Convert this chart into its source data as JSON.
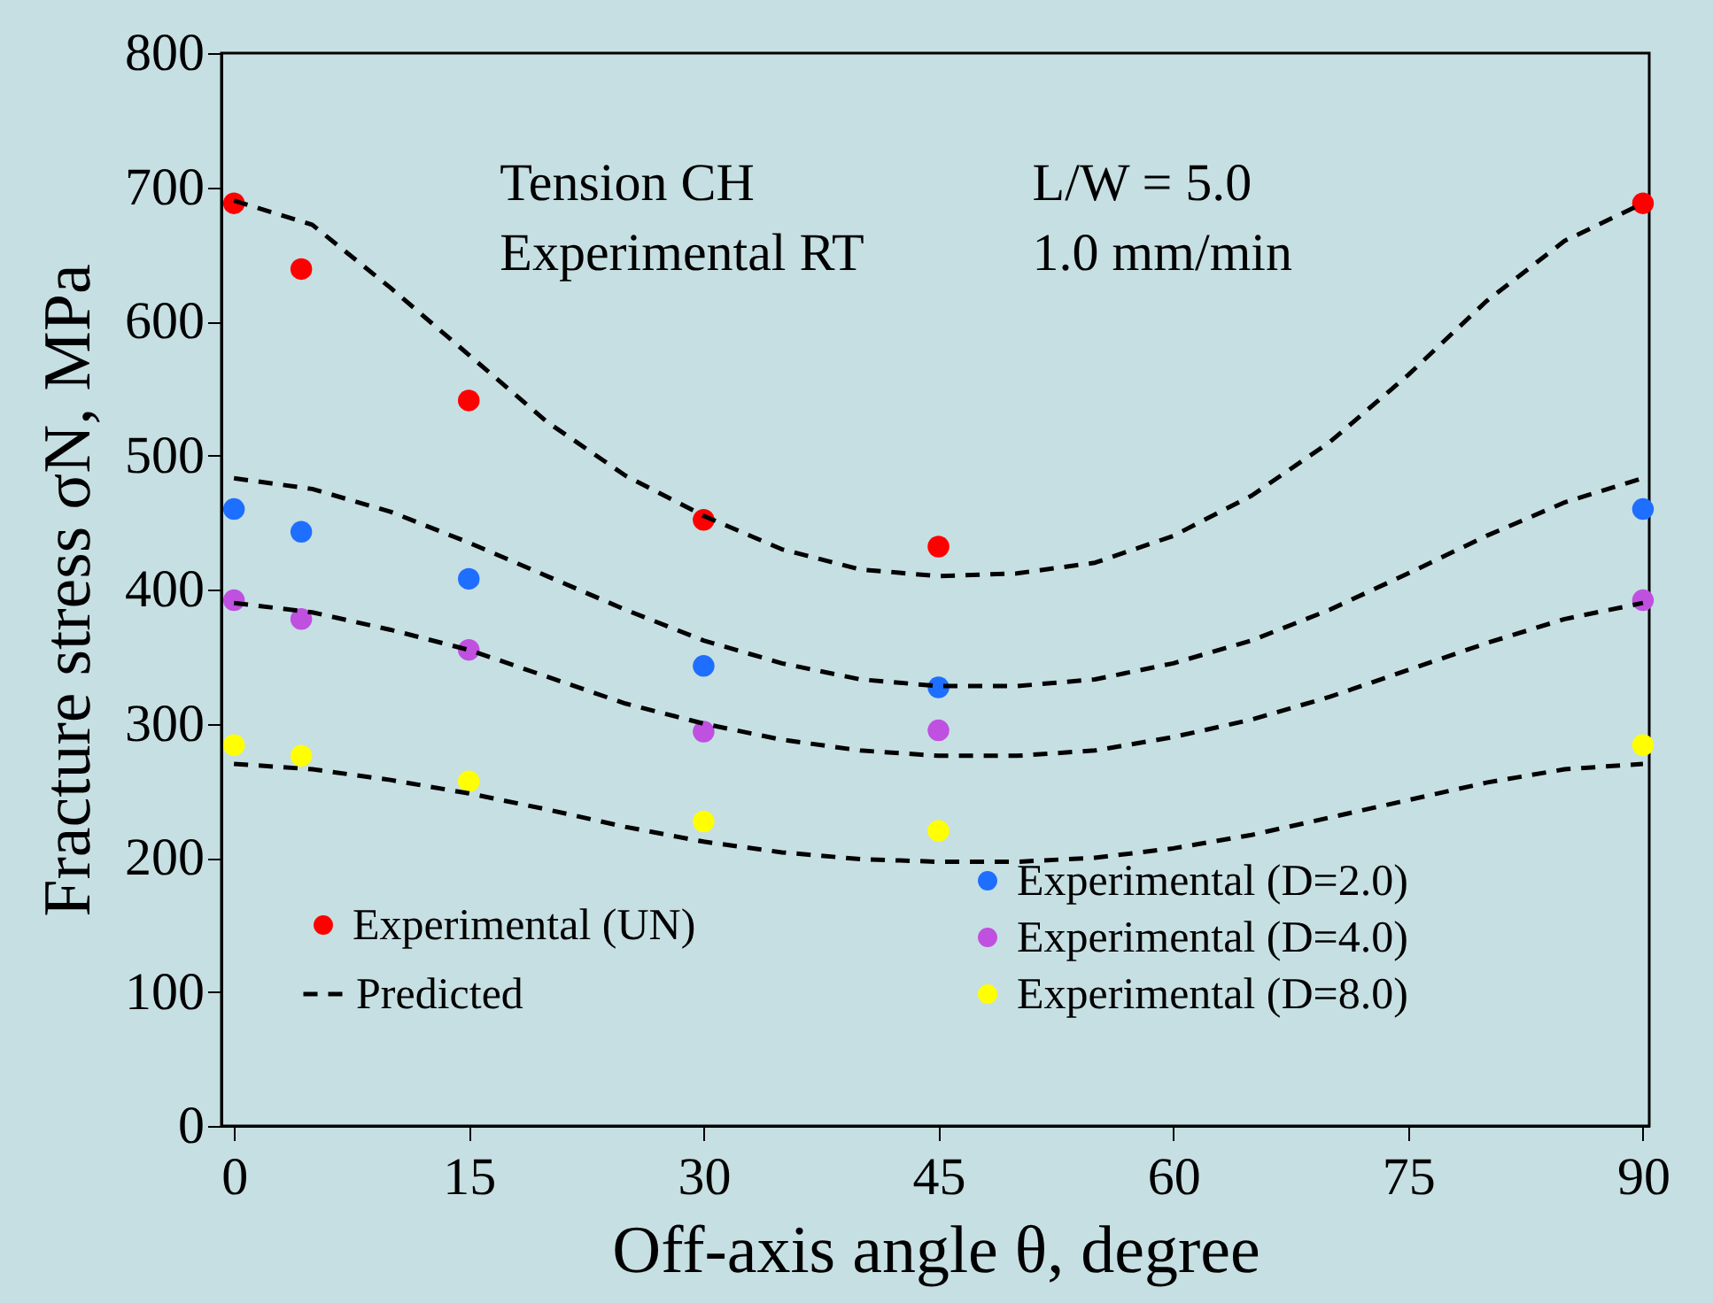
{
  "chart_data": {
    "type": "scatter",
    "xlabel": "Off-axis angle θ, degree",
    "ylabel": "Fracture stress σN,  MPa",
    "annotations": [
      "Tension  CH",
      "L/W = 5.0",
      "Experimental RT",
      "1.0 mm/min"
    ],
    "xlim": [
      -0.8,
      90.4
    ],
    "xticks": [
      0,
      15,
      30,
      45,
      60,
      75,
      90
    ],
    "ylim": [
      0,
      800
    ],
    "yticks": [
      0,
      100,
      200,
      300,
      400,
      500,
      600,
      700,
      800
    ],
    "grid": false,
    "legend": "bottom",
    "marker": "circle",
    "series": [
      {
        "name": "Experimental (UN)",
        "color": "#ff0000",
        "x": [
          0,
          4.3,
          15,
          30,
          45,
          90
        ],
        "values": [
          688,
          639,
          541,
          452,
          432,
          688
        ]
      },
      {
        "name": "Experimental (D=2.0)",
        "color": "#1e6fff",
        "x": [
          0,
          4.3,
          15,
          30,
          45,
          90
        ],
        "values": [
          460,
          443,
          408,
          343,
          327,
          460
        ]
      },
      {
        "name": "Experimental (D=4.0)",
        "color": "#c050e0",
        "x": [
          0,
          4.3,
          15,
          30,
          45,
          90
        ],
        "values": [
          392,
          378,
          355,
          294,
          295,
          392
        ]
      },
      {
        "name": "Experimental (D=8.0)",
        "color": "#ffff00",
        "x": [
          0,
          4.3,
          15,
          30,
          45,
          90
        ],
        "values": [
          284,
          276,
          257,
          227,
          220,
          284
        ]
      },
      {
        "name": "Predicted",
        "color": "#000000",
        "type": "line",
        "marker": "none",
        "line_style": "dashed",
        "x": [
          0,
          5,
          10,
          15,
          20,
          25,
          30,
          35,
          40,
          45,
          50,
          55,
          60,
          65,
          70,
          75,
          80,
          85,
          90
        ],
        "values": [
          690,
          672,
          625,
          575,
          525,
          485,
          455,
          430,
          415,
          410,
          412,
          420,
          440,
          470,
          510,
          560,
          615,
          660,
          688
        ]
      },
      {
        "color": "#000000",
        "type": "line",
        "marker": "none",
        "line_style": "dashed",
        "x": [
          0,
          5,
          10,
          15,
          20,
          25,
          30,
          35,
          40,
          45,
          50,
          55,
          60,
          65,
          70,
          75,
          80,
          85,
          90
        ],
        "values": [
          483,
          475,
          458,
          435,
          410,
          385,
          362,
          345,
          333,
          328,
          328,
          333,
          345,
          362,
          385,
          412,
          440,
          465,
          483
        ]
      },
      {
        "color": "#000000",
        "type": "line",
        "marker": "none",
        "line_style": "dashed",
        "x": [
          0,
          5,
          10,
          15,
          20,
          25,
          30,
          35,
          40,
          45,
          50,
          55,
          60,
          65,
          70,
          75,
          80,
          85,
          90
        ],
        "values": [
          390,
          383,
          370,
          355,
          335,
          315,
          300,
          288,
          280,
          276,
          276,
          280,
          290,
          303,
          320,
          340,
          360,
          378,
          390
        ]
      },
      {
        "color": "#000000",
        "type": "line",
        "marker": "none",
        "line_style": "dashed",
        "x": [
          0,
          5,
          10,
          15,
          20,
          25,
          30,
          35,
          40,
          45,
          50,
          55,
          60,
          65,
          70,
          75,
          80,
          85,
          90
        ],
        "values": [
          270,
          266,
          258,
          248,
          236,
          223,
          212,
          204,
          199,
          197,
          197,
          200,
          207,
          217,
          230,
          243,
          256,
          266,
          270
        ]
      }
    ]
  }
}
